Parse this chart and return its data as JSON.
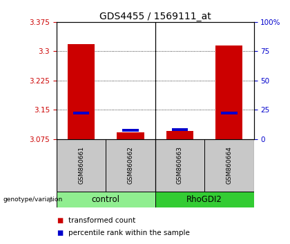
{
  "title": "GDS4455 / 1569111_at",
  "samples": [
    "GSM860661",
    "GSM860662",
    "GSM860663",
    "GSM860664"
  ],
  "groups": [
    "control",
    "control",
    "RhoGDI2",
    "RhoGDI2"
  ],
  "red_values": [
    3.318,
    3.092,
    3.095,
    3.314
  ],
  "blue_values": [
    3.142,
    3.098,
    3.1,
    3.142
  ],
  "ylim_left": [
    3.075,
    3.375
  ],
  "yticks_left": [
    3.075,
    3.15,
    3.225,
    3.3,
    3.375
  ],
  "ytick_labels_left": [
    "3.075",
    "3.15",
    "3.225",
    "3.3",
    "3.375"
  ],
  "yticks_right_pct": [
    0,
    25,
    50,
    75,
    100
  ],
  "ytick_labels_right": [
    "0",
    "25",
    "50",
    "75",
    "100%"
  ],
  "bar_bottom": 3.075,
  "control_color": "#90EE90",
  "rhogdi2_color": "#33CC33",
  "sample_box_color": "#C8C8C8",
  "group_label": "genotype/variation",
  "legend_red": "transformed count",
  "legend_blue": "percentile rank within the sample",
  "bar_width": 0.55,
  "red_color": "#CC0000",
  "blue_color": "#0000CC",
  "left_axis_color": "#CC0000",
  "right_axis_color": "#0000CC",
  "title_fontsize": 10,
  "tick_fontsize": 7.5,
  "sample_fontsize": 6.5,
  "group_fontsize": 8.5,
  "legend_fontsize": 7.5
}
